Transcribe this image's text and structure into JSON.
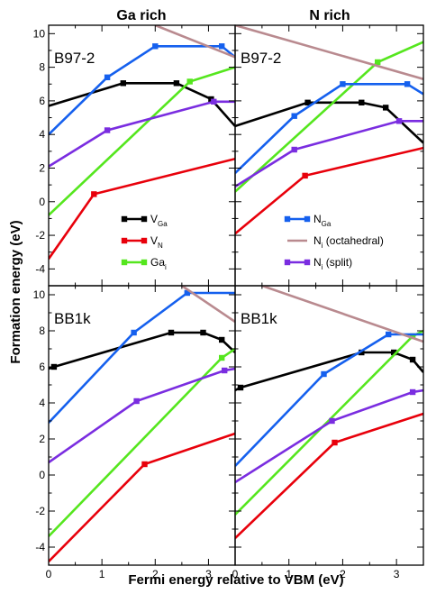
{
  "figure": {
    "ylabel": "Formation energy (eV)",
    "xlabel": "Fermi energy relative to VBM (eV)",
    "columns": [
      "Ga rich",
      "N rich"
    ],
    "rows": [
      "B97-2",
      "BB1k"
    ]
  },
  "legend": [
    {
      "key": "VGa",
      "base": "V",
      "sub": "Ga",
      "rest": "",
      "color": "#000000"
    },
    {
      "key": "VN",
      "base": "V",
      "sub": "N",
      "rest": "",
      "color": "#e8000b"
    },
    {
      "key": "Gai",
      "base": "Ga",
      "sub": "i",
      "rest": "",
      "color": "#55e61e"
    },
    {
      "key": "NGa",
      "base": "N",
      "sub": "Ga",
      "rest": "",
      "color": "#1560ee"
    },
    {
      "key": "Ni_oct",
      "base": "N",
      "sub": "i",
      "rest": " (octahedral)",
      "color": "#b98a8f"
    },
    {
      "key": "Ni_split",
      "base": "N",
      "sub": "i",
      "rest": " (split)",
      "color": "#7a2de0"
    }
  ],
  "chart_data": [
    {
      "type": "line",
      "title": "Ga rich",
      "panel_label": "B97-2",
      "xlim": [
        0,
        3.5
      ],
      "ylim": [
        -5,
        10.5
      ],
      "xticks": [
        0,
        1,
        2,
        3
      ],
      "yticks": [
        -4,
        -2,
        0,
        2,
        4,
        6,
        8,
        10
      ],
      "series": [
        {
          "name": "VGa",
          "points": [
            [
              0,
              5.7
            ],
            [
              1.4,
              7.05
            ],
            [
              2.4,
              7.05
            ],
            [
              3.05,
              6.1
            ],
            [
              3.5,
              4.5
            ]
          ],
          "markers": [
            [
              1.4,
              7.05
            ],
            [
              2.4,
              7.05
            ],
            [
              3.05,
              6.1
            ]
          ]
        },
        {
          "name": "VN",
          "points": [
            [
              0,
              -3.4
            ],
            [
              0.85,
              0.45
            ],
            [
              3.5,
              2.55
            ]
          ],
          "markers": [
            [
              0.85,
              0.45
            ]
          ]
        },
        {
          "name": "Gai",
          "points": [
            [
              0,
              -0.8
            ],
            [
              2.65,
              7.15
            ],
            [
              3.5,
              8.0
            ]
          ],
          "markers": [
            [
              2.65,
              7.15
            ]
          ]
        },
        {
          "name": "NGa",
          "points": [
            [
              0,
              4.0
            ],
            [
              1.1,
              7.4
            ],
            [
              2.0,
              9.25
            ],
            [
              3.25,
              9.25
            ],
            [
              3.5,
              8.6
            ]
          ],
          "markers": [
            [
              1.1,
              7.4
            ],
            [
              2.0,
              9.25
            ],
            [
              3.25,
              9.25
            ]
          ]
        },
        {
          "name": "Ni_oct",
          "points": [
            [
              2.0,
              10.5
            ],
            [
              3.5,
              8.6
            ]
          ],
          "markers": []
        },
        {
          "name": "Ni_split",
          "points": [
            [
              0,
              2.1
            ],
            [
              1.1,
              4.25
            ],
            [
              3.1,
              5.95
            ],
            [
              3.5,
              5.95
            ]
          ],
          "markers": [
            [
              1.1,
              4.25
            ],
            [
              3.1,
              5.95
            ]
          ]
        }
      ]
    },
    {
      "type": "line",
      "title": "N rich",
      "panel_label": "B97-2",
      "xlim": [
        0,
        3.5
      ],
      "ylim": [
        -5,
        10.5
      ],
      "xticks": [
        0,
        1,
        2,
        3
      ],
      "yticks": [
        -4,
        -2,
        0,
        2,
        4,
        6,
        8,
        10
      ],
      "series": [
        {
          "name": "VGa",
          "points": [
            [
              0,
              4.5
            ],
            [
              1.35,
              5.9
            ],
            [
              2.35,
              5.9
            ],
            [
              2.8,
              5.6
            ],
            [
              3.5,
              3.5
            ]
          ],
          "markers": [
            [
              1.35,
              5.9
            ],
            [
              2.35,
              5.9
            ],
            [
              2.8,
              5.6
            ]
          ]
        },
        {
          "name": "VN",
          "points": [
            [
              0,
              -1.9
            ],
            [
              1.3,
              1.55
            ],
            [
              3.5,
              3.2
            ]
          ],
          "markers": [
            [
              1.3,
              1.55
            ]
          ]
        },
        {
          "name": "Gai",
          "points": [
            [
              0,
              0.6
            ],
            [
              2.65,
              8.3
            ],
            [
              3.5,
              9.5
            ]
          ],
          "markers": [
            [
              2.65,
              8.3
            ]
          ]
        },
        {
          "name": "NGa",
          "points": [
            [
              0,
              1.7
            ],
            [
              1.1,
              5.1
            ],
            [
              2.0,
              7.0
            ],
            [
              3.2,
              7.0
            ],
            [
              3.5,
              6.4
            ]
          ],
          "markers": [
            [
              1.1,
              5.1
            ],
            [
              2.0,
              7.0
            ],
            [
              3.2,
              7.0
            ]
          ]
        },
        {
          "name": "Ni_oct",
          "points": [
            [
              0,
              10.5
            ],
            [
              3.5,
              7.3
            ]
          ],
          "markers": []
        },
        {
          "name": "Ni_split",
          "points": [
            [
              0,
              0.9
            ],
            [
              1.1,
              3.1
            ],
            [
              3.05,
              4.8
            ],
            [
              3.5,
              4.8
            ]
          ],
          "markers": [
            [
              1.1,
              3.1
            ],
            [
              3.05,
              4.8
            ]
          ]
        }
      ]
    },
    {
      "type": "line",
      "title": "",
      "panel_label": "BB1k",
      "xlim": [
        0,
        3.5
      ],
      "ylim": [
        -5,
        10.5
      ],
      "xticks": [
        0,
        1,
        2,
        3
      ],
      "yticks": [
        -4,
        -2,
        0,
        2,
        4,
        6,
        8,
        10
      ],
      "series": [
        {
          "name": "VGa",
          "points": [
            [
              0,
              5.9
            ],
            [
              0.1,
              6.0
            ],
            [
              2.3,
              7.9
            ],
            [
              2.9,
              7.9
            ],
            [
              3.25,
              7.5
            ],
            [
              3.5,
              6.8
            ]
          ],
          "markers": [
            [
              0.1,
              6.0
            ],
            [
              2.3,
              7.9
            ],
            [
              2.9,
              7.9
            ],
            [
              3.25,
              7.5
            ]
          ]
        },
        {
          "name": "VN",
          "points": [
            [
              0,
              -4.8
            ],
            [
              1.8,
              0.6
            ],
            [
              3.5,
              2.3
            ]
          ],
          "markers": [
            [
              1.8,
              0.6
            ]
          ]
        },
        {
          "name": "Gai",
          "points": [
            [
              0,
              -3.4
            ],
            [
              3.25,
              6.5
            ],
            [
              3.5,
              7.0
            ]
          ],
          "markers": [
            [
              3.25,
              6.5
            ]
          ]
        },
        {
          "name": "NGa",
          "points": [
            [
              0,
              2.9
            ],
            [
              1.6,
              7.9
            ],
            [
              2.6,
              10.1
            ],
            [
              3.5,
              10.1
            ]
          ],
          "markers": [
            [
              1.6,
              7.9
            ],
            [
              2.6,
              10.1
            ]
          ]
        },
        {
          "name": "Ni_oct",
          "points": [
            [
              2.5,
              10.5
            ],
            [
              3.5,
              8.5
            ]
          ],
          "markers": []
        },
        {
          "name": "Ni_split",
          "points": [
            [
              0,
              0.7
            ],
            [
              1.65,
              4.1
            ],
            [
              3.3,
              5.8
            ],
            [
              3.5,
              5.9
            ]
          ],
          "markers": [
            [
              1.65,
              4.1
            ],
            [
              3.3,
              5.8
            ]
          ]
        }
      ]
    },
    {
      "type": "line",
      "title": "",
      "panel_label": "BB1k",
      "xlim": [
        0,
        3.5
      ],
      "ylim": [
        -5,
        10.5
      ],
      "xticks": [
        0,
        1,
        2,
        3
      ],
      "yticks": [
        -4,
        -2,
        0,
        2,
        4,
        6,
        8,
        10
      ],
      "series": [
        {
          "name": "VGa",
          "points": [
            [
              0,
              4.7
            ],
            [
              0.1,
              4.85
            ],
            [
              2.35,
              6.8
            ],
            [
              2.95,
              6.8
            ],
            [
              3.3,
              6.4
            ],
            [
              3.5,
              5.7
            ]
          ],
          "markers": [
            [
              0.1,
              4.85
            ],
            [
              2.35,
              6.8
            ],
            [
              2.95,
              6.8
            ],
            [
              3.3,
              6.4
            ]
          ]
        },
        {
          "name": "VN",
          "points": [
            [
              0,
              -3.5
            ],
            [
              1.85,
              1.8
            ],
            [
              3.5,
              3.4
            ]
          ],
          "markers": [
            [
              1.85,
              1.8
            ]
          ]
        },
        {
          "name": "Gai",
          "points": [
            [
              0,
              -2.2
            ],
            [
              3.3,
              7.7
            ],
            [
              3.5,
              8.0
            ]
          ],
          "markers": [
            [
              3.3,
              7.7
            ]
          ]
        },
        {
          "name": "NGa",
          "points": [
            [
              0,
              0.5
            ],
            [
              1.65,
              5.6
            ],
            [
              2.85,
              7.8
            ],
            [
              3.5,
              7.8
            ]
          ],
          "markers": [
            [
              1.65,
              5.6
            ],
            [
              2.85,
              7.8
            ]
          ]
        },
        {
          "name": "Ni_oct",
          "points": [
            [
              0.5,
              10.5
            ],
            [
              3.5,
              7.4
            ]
          ],
          "markers": []
        },
        {
          "name": "Ni_split",
          "points": [
            [
              0,
              -0.4
            ],
            [
              1.8,
              3.0
            ],
            [
              3.3,
              4.6
            ],
            [
              3.5,
              4.7
            ]
          ],
          "markers": [
            [
              1.8,
              3.0
            ],
            [
              3.3,
              4.6
            ]
          ]
        }
      ]
    }
  ]
}
